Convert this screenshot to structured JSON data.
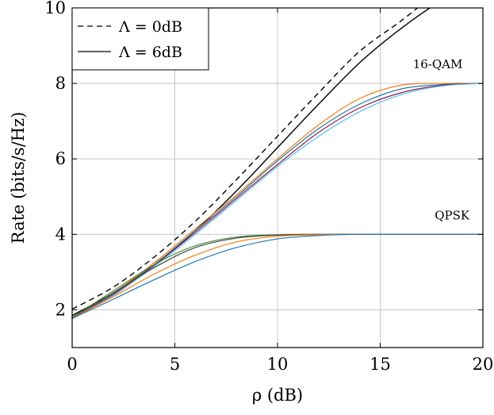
{
  "chart_data": {
    "type": "line",
    "xlabel": "ρ (dB)",
    "ylabel": "Rate (bits/s/Hz)",
    "xlim": [
      0,
      20
    ],
    "ylim": [
      1,
      10
    ],
    "xticks": [
      "0",
      "5",
      "10",
      "15",
      "20"
    ],
    "yticks": [
      "2",
      "4",
      "6",
      "8",
      "10"
    ],
    "grid": true,
    "legend_position": "top-left",
    "legend": [
      {
        "label": "Λ = 0dB",
        "style": "dashed",
        "color": "#000000"
      },
      {
        "label": "Λ = 6dB",
        "style": "solid",
        "color": "#000000"
      }
    ],
    "annotations": [
      {
        "text": "16-QAM",
        "x": 17.8,
        "y": 8.4
      },
      {
        "text": "QPSK",
        "x": 18.5,
        "y": 4.4
      }
    ],
    "series": [
      {
        "name": "Λ = 0dB",
        "color": "#000000",
        "dash": true,
        "x": [
          0,
          2,
          4,
          6,
          8,
          10,
          12,
          14,
          16,
          17.5
        ],
        "y": [
          2.02,
          2.6,
          3.4,
          4.35,
          5.45,
          6.6,
          7.75,
          8.85,
          9.65,
          10.3
        ]
      },
      {
        "name": "Λ = 6dB",
        "color": "#000000",
        "dash": false,
        "x": [
          0,
          2,
          4,
          6,
          8,
          10,
          12,
          14,
          16,
          18,
          18.9
        ],
        "y": [
          1.85,
          2.45,
          3.2,
          4.1,
          5.15,
          6.3,
          7.45,
          8.55,
          9.45,
          10.2,
          10.4
        ]
      },
      {
        "color": "#ff7f0e",
        "dash": false,
        "x": [
          0,
          2,
          4,
          6,
          8,
          10,
          12,
          14,
          16,
          18,
          20
        ],
        "y": [
          1.8,
          2.45,
          3.25,
          4.15,
          5.05,
          6.0,
          6.9,
          7.6,
          7.95,
          8.0,
          8.0
        ]
      },
      {
        "color": "#1f77b4",
        "dash": false,
        "x": [
          0,
          2,
          4,
          6,
          8,
          10,
          12,
          14,
          16,
          18,
          20
        ],
        "y": [
          1.78,
          2.42,
          3.2,
          4.1,
          5.0,
          5.95,
          6.8,
          7.45,
          7.85,
          7.97,
          8.0
        ]
      },
      {
        "color": "#8b1a4a",
        "dash": false,
        "x": [
          0,
          2,
          4,
          6,
          8,
          10,
          12,
          14,
          16,
          18,
          20
        ],
        "y": [
          1.77,
          2.4,
          3.18,
          4.05,
          4.95,
          5.85,
          6.7,
          7.35,
          7.75,
          7.95,
          8.0
        ]
      },
      {
        "color": "#4fc3f7",
        "dash": false,
        "x": [
          0,
          2,
          4,
          6,
          8,
          10,
          12,
          14,
          16,
          18,
          20
        ],
        "y": [
          1.76,
          2.38,
          3.15,
          4.0,
          4.9,
          5.8,
          6.6,
          7.25,
          7.7,
          7.93,
          8.0
        ]
      },
      {
        "color": "#4a8f3a",
        "dash": false,
        "x": [
          0,
          2,
          4,
          6,
          8,
          10,
          12,
          14,
          16,
          18,
          20
        ],
        "y": [
          1.8,
          2.5,
          3.2,
          3.7,
          3.93,
          3.99,
          4.0,
          4.0,
          4.0,
          4.0,
          4.0
        ]
      },
      {
        "color": "#444444",
        "dash": false,
        "x": [
          0,
          2,
          4,
          6,
          8,
          10,
          12,
          14,
          16,
          18,
          20
        ],
        "y": [
          1.79,
          2.45,
          3.12,
          3.65,
          3.9,
          3.98,
          4.0,
          4.0,
          4.0,
          4.0,
          4.0
        ]
      },
      {
        "color": "#ff7f0e",
        "dash": false,
        "x": [
          0,
          2,
          4,
          6,
          8,
          10,
          12,
          14,
          16,
          18,
          20
        ],
        "y": [
          1.78,
          2.35,
          2.95,
          3.45,
          3.8,
          3.95,
          3.99,
          4.0,
          4.0,
          4.0,
          4.0
        ]
      },
      {
        "color": "#1f77b4",
        "dash": false,
        "x": [
          0,
          2,
          4,
          6,
          8,
          10,
          12,
          14,
          16,
          18,
          20
        ],
        "y": [
          1.77,
          2.28,
          2.8,
          3.28,
          3.65,
          3.88,
          3.97,
          4.0,
          4.0,
          4.0,
          4.0
        ]
      }
    ]
  }
}
